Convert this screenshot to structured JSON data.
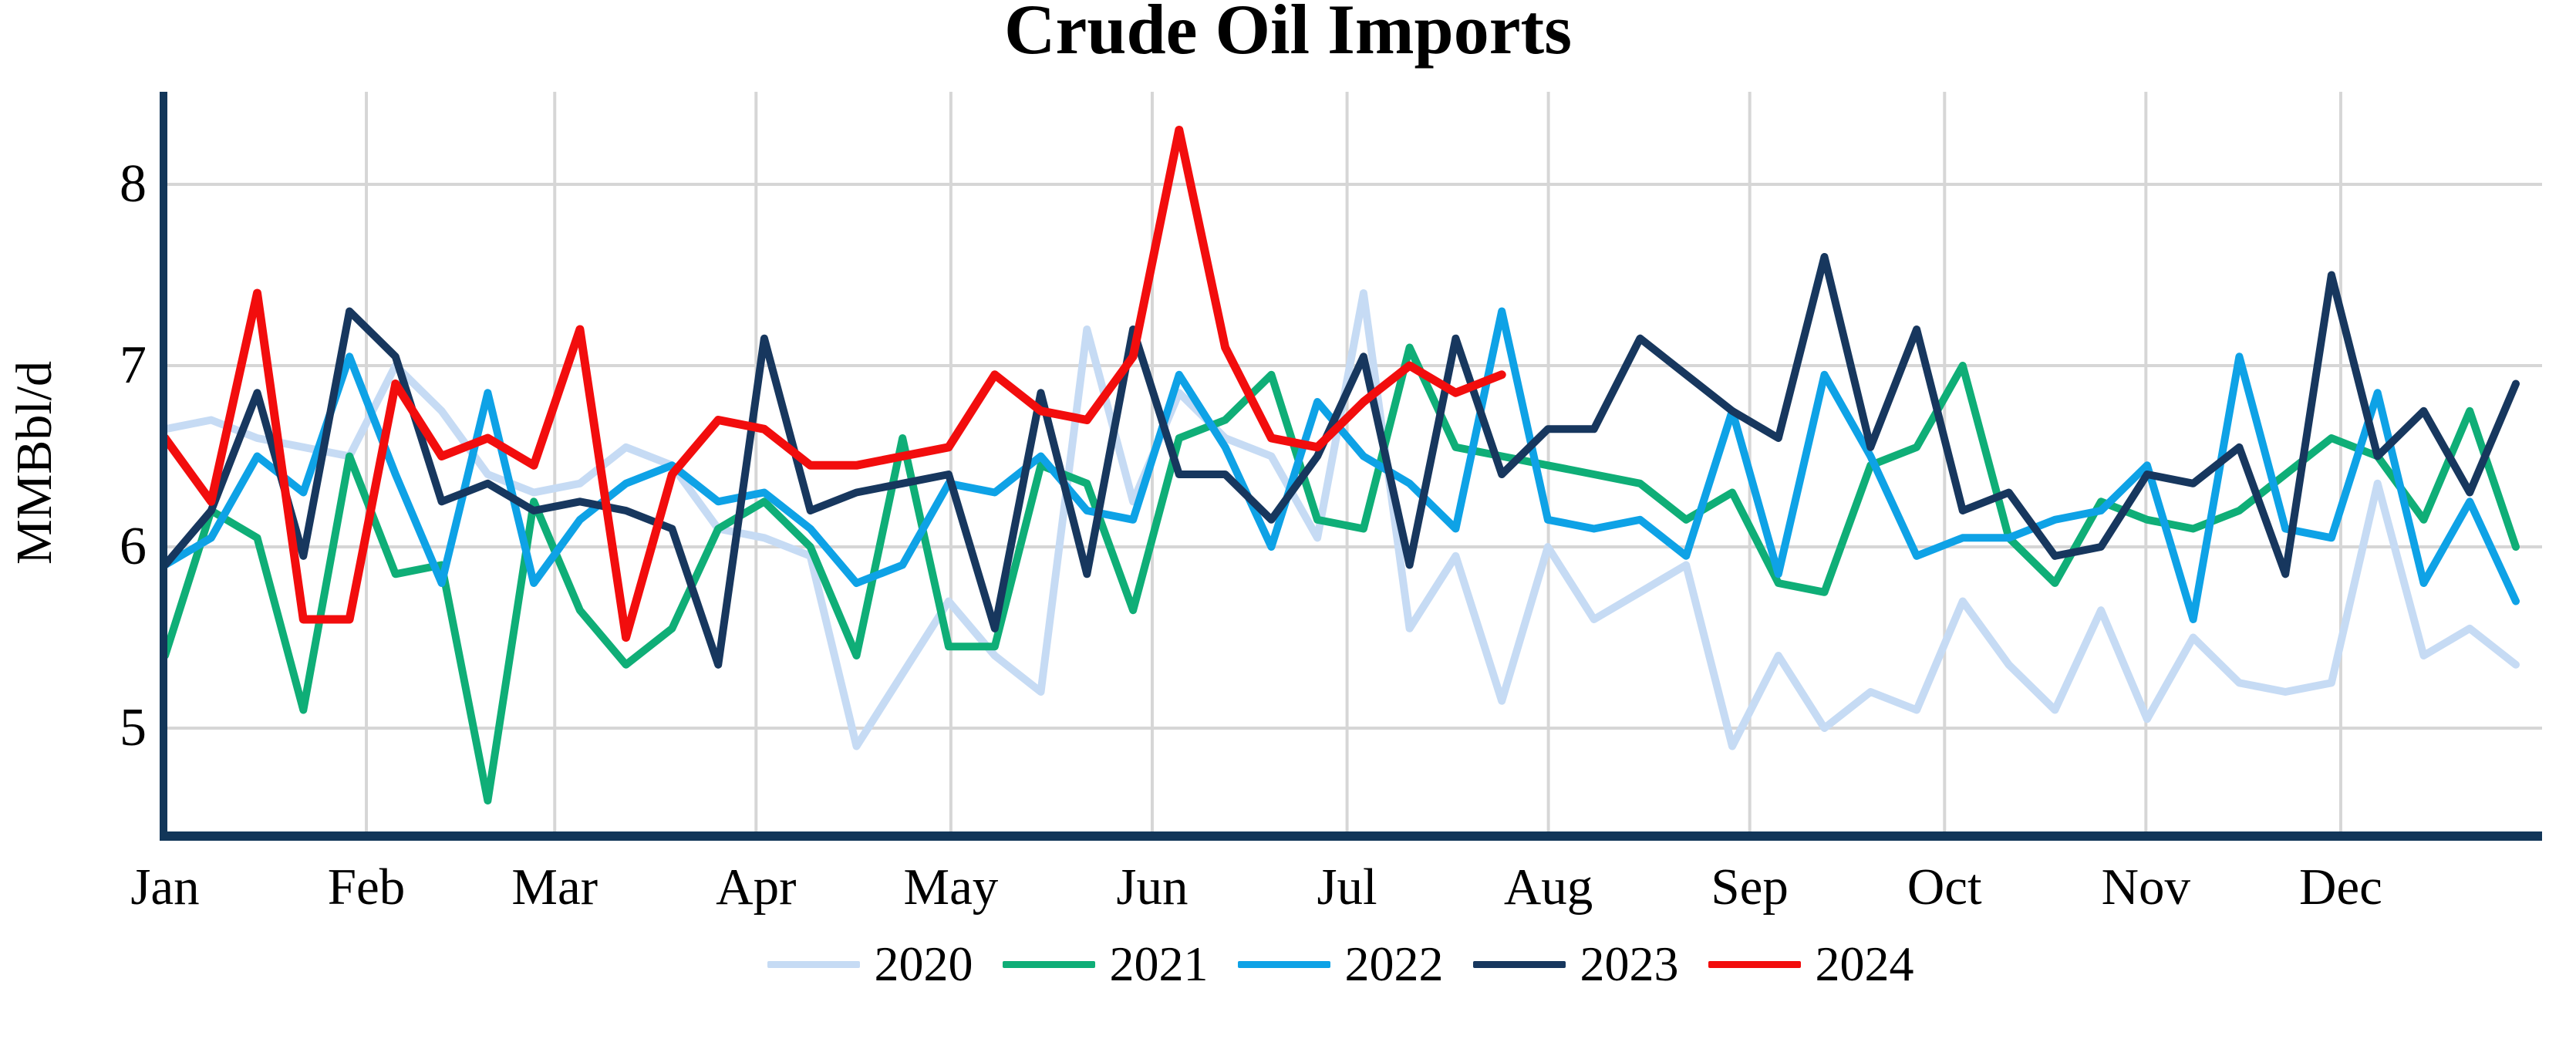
{
  "chart_data": {
    "type": "line",
    "title": "Crude Oil Imports",
    "ylabel": "MMBbl/d",
    "xlabel": "",
    "x_unit": "week-of-year",
    "weeks_per_year": 52,
    "grid": true,
    "legend_position": "bottom",
    "x_axis": {
      "months": [
        "Jan",
        "Feb",
        "Mar",
        "Apr",
        "May",
        "Jun",
        "Jul",
        "Aug",
        "Sep",
        "Oct",
        "Nov",
        "Dec"
      ]
    },
    "y_axis": {
      "ticks": [
        8,
        7,
        6,
        5
      ],
      "range_shown": [
        4.3,
        8.6
      ]
    },
    "colors": {
      "axis": "#123659",
      "grid": "#d6d6d6",
      "background": "#ffffff",
      "title_text": "#000000"
    },
    "series": [
      {
        "name": "2020",
        "color": "#c6dbf4",
        "values": [
          6.65,
          6.7,
          6.6,
          6.55,
          6.5,
          7.0,
          6.75,
          6.4,
          6.3,
          6.35,
          6.55,
          6.45,
          6.1,
          6.05,
          5.95,
          4.9,
          5.3,
          5.7,
          5.4,
          5.2,
          7.2,
          6.25,
          6.85,
          6.6,
          6.5,
          6.05,
          7.4,
          5.55,
          5.95,
          5.15,
          6.0,
          5.6,
          5.75,
          5.9,
          4.9,
          5.4,
          5.0,
          5.2,
          5.1,
          5.7,
          5.35,
          5.1,
          5.65,
          5.05,
          5.5,
          5.25,
          5.2,
          5.25,
          6.35,
          5.4,
          5.55,
          5.35
        ]
      },
      {
        "name": "2021",
        "color": "#0fae77",
        "values": [
          5.4,
          6.2,
          6.05,
          5.1,
          6.5,
          5.85,
          5.9,
          4.6,
          6.25,
          5.65,
          5.35,
          5.55,
          6.1,
          6.25,
          6.0,
          5.4,
          6.6,
          5.45,
          5.45,
          6.45,
          6.35,
          5.65,
          6.6,
          6.7,
          6.95,
          6.15,
          6.1,
          7.1,
          6.55,
          6.5,
          6.45,
          6.4,
          6.35,
          6.15,
          6.3,
          5.8,
          5.75,
          6.45,
          6.55,
          7.0,
          6.05,
          5.8,
          6.25,
          6.15,
          6.1,
          6.2,
          6.4,
          6.6,
          6.5,
          6.15,
          6.75,
          6.0
        ]
      },
      {
        "name": "2022",
        "color": "#0ea2e6",
        "values": [
          5.9,
          6.05,
          6.5,
          6.3,
          7.05,
          6.4,
          5.8,
          6.85,
          5.8,
          6.15,
          6.35,
          6.45,
          6.25,
          6.3,
          6.1,
          5.8,
          5.9,
          6.35,
          6.3,
          6.5,
          6.2,
          6.15,
          6.95,
          6.55,
          6.0,
          6.8,
          6.5,
          6.35,
          6.1,
          7.3,
          6.15,
          6.1,
          6.15,
          5.95,
          6.75,
          5.85,
          6.95,
          6.5,
          5.95,
          6.05,
          6.05,
          6.15,
          6.2,
          6.45,
          5.6,
          7.05,
          6.1,
          6.05,
          6.85,
          5.8,
          6.25,
          5.7
        ]
      },
      {
        "name": "2023",
        "color": "#17375e",
        "values": [
          5.9,
          6.2,
          6.85,
          5.95,
          7.3,
          7.05,
          6.25,
          6.35,
          6.2,
          6.25,
          6.2,
          6.1,
          5.35,
          7.15,
          6.2,
          6.3,
          6.35,
          6.4,
          5.55,
          6.85,
          5.85,
          7.2,
          6.4,
          6.4,
          6.15,
          6.5,
          7.05,
          5.9,
          7.15,
          6.4,
          6.65,
          6.65,
          7.15,
          6.95,
          6.75,
          6.6,
          7.6,
          6.55,
          7.2,
          6.2,
          6.3,
          5.95,
          6.0,
          6.4,
          6.35,
          6.55,
          5.85,
          7.5,
          6.5,
          6.75,
          6.3,
          6.9
        ]
      },
      {
        "name": "2024",
        "color": "#f20d0d",
        "values": [
          6.6,
          6.25,
          7.4,
          5.6,
          5.6,
          6.9,
          6.5,
          6.6,
          6.45,
          7.2,
          5.5,
          6.4,
          6.7,
          6.65,
          6.45,
          6.45,
          6.5,
          6.55,
          6.95,
          6.75,
          6.7,
          7.05,
          8.3,
          7.1,
          6.6,
          6.55,
          6.8,
          7.0,
          6.85,
          6.95
        ]
      }
    ]
  }
}
